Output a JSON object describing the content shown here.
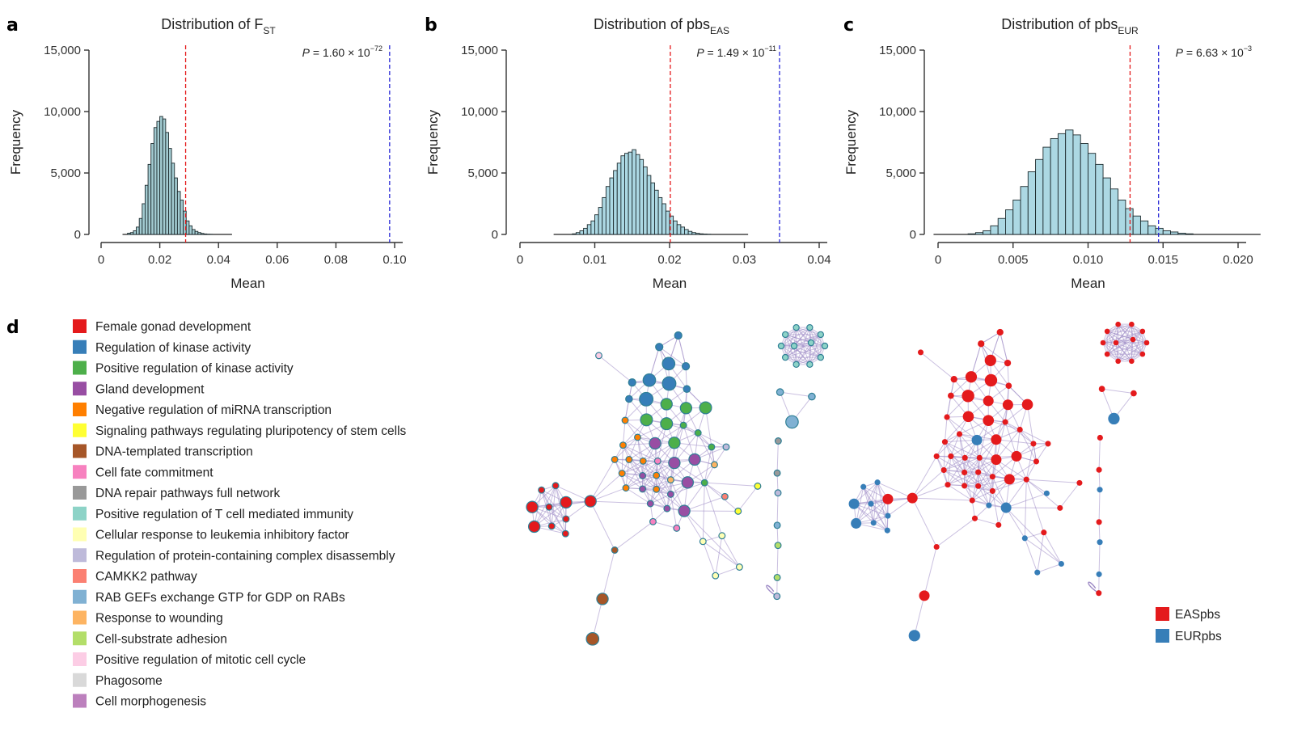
{
  "panels": {
    "a": "a",
    "b": "b",
    "c": "c",
    "d": "d"
  },
  "chart_data": [
    {
      "type": "bar",
      "panel": "a",
      "title": "Distribution of F",
      "title_sub": "ST",
      "xlabel": "Mean",
      "ylabel": "Frequency",
      "xlim": [
        0,
        0.1
      ],
      "ylim": [
        0,
        15000
      ],
      "xticks": [
        0,
        0.02,
        0.04,
        0.06,
        0.08,
        0.1
      ],
      "xtick_labels": [
        "0",
        "0.02",
        "0.04",
        "0.06",
        "0.08",
        "0.10"
      ],
      "yticks": [
        0,
        5000,
        10000,
        15000
      ],
      "ytick_labels": [
        "0",
        "5,000",
        "10,000",
        "15,000"
      ],
      "bin_start": 0.009,
      "bin_width": 0.001,
      "counts": [
        100,
        150,
        300,
        600,
        1300,
        2500,
        4000,
        5700,
        7400,
        8700,
        9200,
        9600,
        9400,
        8300,
        7000,
        5800,
        4600,
        3500,
        2800,
        1900,
        1100,
        700,
        400,
        250,
        150,
        80,
        40,
        20,
        10
      ],
      "baseline_range": [
        0.0073,
        0.0446
      ],
      "red_line": 0.0288,
      "blue_line": 0.0983,
      "p_prefix": "P",
      "p_text": " = 1.60 × 10",
      "p_exp": "−72",
      "bar_color": "#a3cbd1",
      "grid": false
    },
    {
      "type": "bar",
      "panel": "b",
      "title": "Distribution of pbs",
      "title_sub": "EAS",
      "xlabel": "Mean",
      "ylabel": "Frequency",
      "xlim": [
        0,
        0.04
      ],
      "ylim": [
        0,
        15000
      ],
      "xticks": [
        0,
        0.01,
        0.02,
        0.03,
        0.04
      ],
      "xtick_labels": [
        "0",
        "0.01",
        "0.02",
        "0.03",
        "0.04"
      ],
      "yticks": [
        0,
        5000,
        10000,
        15000
      ],
      "ytick_labels": [
        "0",
        "5,000",
        "10,000",
        "15,000"
      ],
      "bin_start": 0.007,
      "bin_width": 0.0005,
      "counts": [
        50,
        150,
        300,
        500,
        800,
        1100,
        1600,
        2200,
        3000,
        3900,
        4600,
        5200,
        5800,
        6400,
        6600,
        6700,
        6900,
        6500,
        6100,
        5500,
        4800,
        4200,
        3600,
        3000,
        2500,
        1900,
        1500,
        1100,
        800,
        600,
        400,
        250,
        150,
        90,
        50,
        30,
        15
      ],
      "baseline_range": [
        0.0045,
        0.0305
      ],
      "red_line": 0.0201,
      "blue_line": 0.0347,
      "p_prefix": "P",
      "p_text": " = 1.49 × 10",
      "p_exp": "−11",
      "bar_color": "#acd8e3",
      "grid": false
    },
    {
      "type": "bar",
      "panel": "c",
      "title": "Distribution of pbs",
      "title_sub": "EUR",
      "xlabel": "Mean",
      "ylabel": "Frequency",
      "xlim": [
        0,
        0.02
      ],
      "ylim": [
        0,
        15000
      ],
      "xticks": [
        0,
        0.005,
        0.01,
        0.015,
        0.02
      ],
      "xtick_labels": [
        "0",
        "0.005",
        "0.010",
        "0.015",
        "0.020"
      ],
      "yticks": [
        0,
        5000,
        10000,
        15000
      ],
      "ytick_labels": [
        "0",
        "5,000",
        "10,000",
        "15,000"
      ],
      "bin_start": 0.002,
      "bin_width": 0.0005,
      "counts": [
        50,
        150,
        300,
        700,
        1300,
        2000,
        2800,
        3900,
        5100,
        6100,
        7100,
        7800,
        8200,
        8500,
        8100,
        7400,
        6600,
        5700,
        4600,
        3700,
        2800,
        2100,
        1500,
        1100,
        700,
        500,
        300,
        200,
        100,
        50
      ],
      "baseline_range": [
        -0.0003,
        0.0215
      ],
      "red_line": 0.0128,
      "blue_line": 0.0147,
      "p_prefix": "P",
      "p_text": " = 6.63 × 10",
      "p_exp": "−3",
      "bar_color": "#acd8e3",
      "grid": false
    }
  ],
  "network_legend": {
    "items": [
      {
        "label": "Female gonad development",
        "color": "#e41a1c"
      },
      {
        "label": "Regulation of kinase activity",
        "color": "#377eb8"
      },
      {
        "label": "Positive regulation of kinase activity",
        "color": "#4daf4a"
      },
      {
        "label": "Gland development",
        "color": "#984ea3"
      },
      {
        "label": "Negative regulation of miRNA transcription",
        "color": "#ff7f00"
      },
      {
        "label": "Signaling pathways regulating pluripotency of stem cells",
        "color": "#ffff33"
      },
      {
        "label": "DNA-templated transcription",
        "color": "#a65628"
      },
      {
        "label": "Cell fate commitment",
        "color": "#f781bf"
      },
      {
        "label": "DNA repair pathways full network",
        "color": "#999999"
      },
      {
        "label": "Positive regulation of T cell mediated immunity",
        "color": "#8dd3c7"
      },
      {
        "label": "Cellular response to leukemia inhibitory factor",
        "color": "#ffffb3"
      },
      {
        "label": "Regulation of protein-containing complex disassembly",
        "color": "#bebada"
      },
      {
        "label": "CAMKK2 pathway",
        "color": "#fb8072"
      },
      {
        "label": "RAB GEFs exchange GTP for GDP on RABs",
        "color": "#80b1d3"
      },
      {
        "label": "Response to wounding",
        "color": "#fdb462"
      },
      {
        "label": "Cell-substrate adhesion",
        "color": "#b3de69"
      },
      {
        "label": "Positive regulation of mitotic cell cycle",
        "color": "#fccde5"
      },
      {
        "label": "Phagosome",
        "color": "#d9d9d9"
      },
      {
        "label": "Cell morphogenesis",
        "color": "#bc80bd"
      }
    ]
  },
  "population_legend": {
    "items": [
      {
        "label": "EASpbs",
        "color": "#e41a1c"
      },
      {
        "label": "EURpbs",
        "color": "#377eb8"
      }
    ]
  },
  "colors": {
    "edge": "#9f8cc6",
    "node_stroke": "#2f7f95",
    "red_line": "#e41a1c",
    "blue_line": "#2b2bd6"
  }
}
